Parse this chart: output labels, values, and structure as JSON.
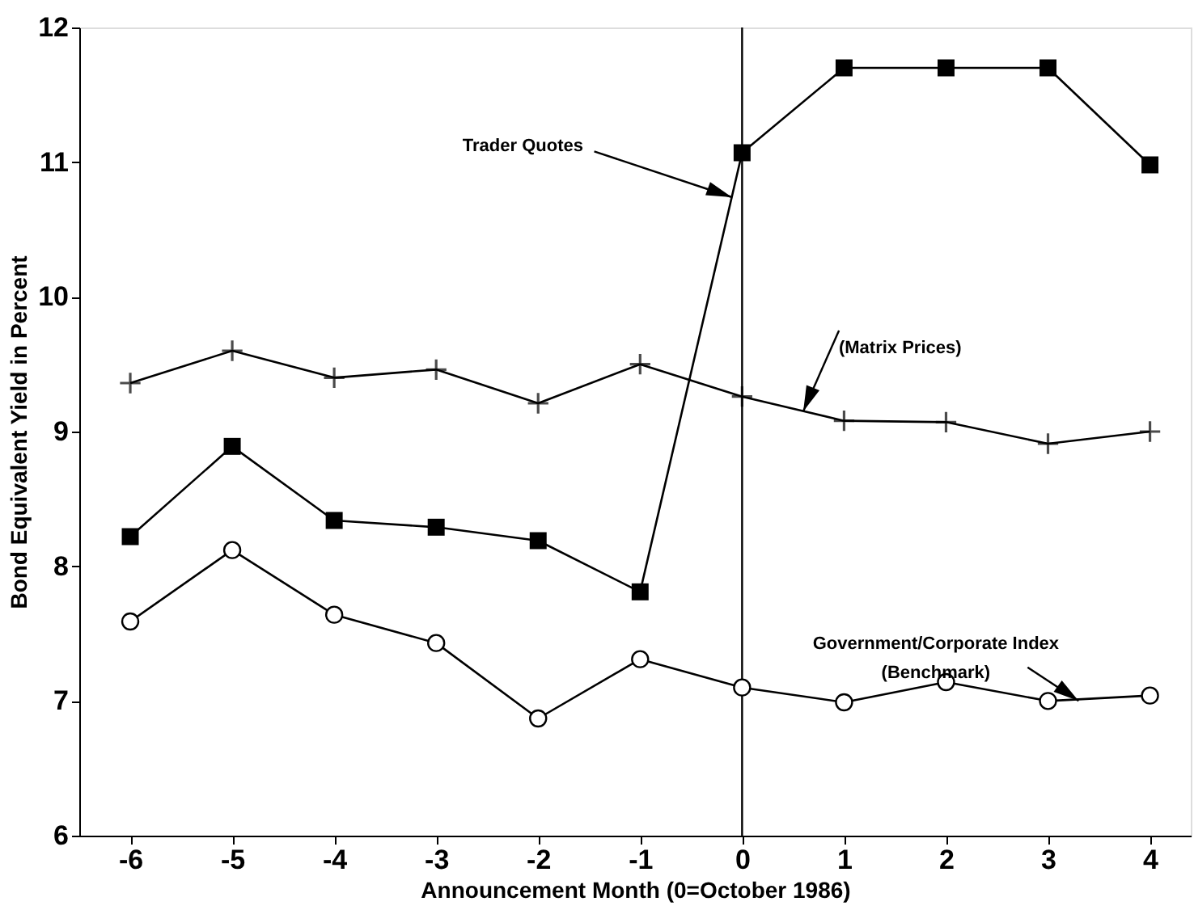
{
  "chart_data": {
    "type": "line",
    "xlabel": "Announcement Month (0=October 1986)",
    "ylabel": "Bond Equivalent Yield in Percent",
    "x": [
      -6,
      -5,
      -4,
      -3,
      -2,
      -1,
      0,
      1,
      2,
      3,
      4
    ],
    "series": [
      {
        "color": "#000000",
        "marker": "square",
        "values": [
          8.22,
          8.89,
          8.34,
          8.29,
          8.19,
          7.81,
          11.07,
          11.7,
          11.7,
          11.7,
          10.98
        ]
      },
      {
        "color": "#000000",
        "marker": "cross",
        "values": [
          9.36,
          9.6,
          9.4,
          9.46,
          9.21,
          9.5,
          9.26,
          9.08,
          9.07,
          8.91,
          9.0
        ]
      },
      {
        "color": "#000000",
        "marker": "circle",
        "values": [
          7.59,
          8.12,
          7.64,
          7.43,
          6.87,
          7.31,
          7.1,
          6.99,
          7.14,
          7.0,
          7.04
        ]
      }
    ],
    "xlim": [
      -6.5,
      4.4
    ],
    "ylim": [
      6,
      12
    ],
    "xticks": [
      -6,
      -5,
      -4,
      -3,
      -2,
      -1,
      0,
      1,
      2,
      3,
      4
    ],
    "yticks": [
      6,
      7,
      8,
      9,
      10,
      11,
      12
    ],
    "ref_lines": [
      {
        "axis": "x",
        "value": 0,
        "color": "#000000"
      }
    ],
    "annotations": [
      {
        "text": "Trader Quotes",
        "x": -0.1,
        "y": 10.74
      },
      {
        "text": "(Matrix Prices)",
        "x": 0.6,
        "y": 9.15
      },
      {
        "text": "Government/Corporate Index\n(Benchmark)",
        "x": 3.3,
        "y": 7.0
      }
    ],
    "grid": false,
    "line_style": "solid"
  }
}
